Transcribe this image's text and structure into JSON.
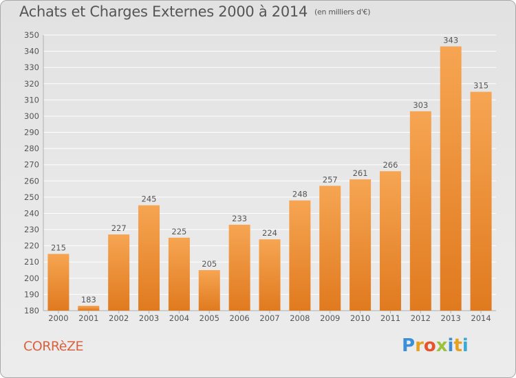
{
  "title": "Achats et Charges Externes 2000 à 2014",
  "subtitle": "(en milliers d'€)",
  "region": "CORRèZE",
  "brand": {
    "letters": [
      {
        "ch": "P",
        "color": "#3a8fd6"
      },
      {
        "ch": "r",
        "color": "#e6a21f"
      },
      {
        "ch": "o",
        "color": "#e5542b"
      },
      {
        "ch": "x",
        "color": "#9bc23c"
      },
      {
        "ch": "i",
        "color": "#3a8fd6"
      },
      {
        "ch": "t",
        "color": "#e6a21f"
      },
      {
        "ch": "i",
        "color": "#3aa9d6"
      }
    ]
  },
  "colors": {
    "bar_light": "#f6a552",
    "bar_dark": "#e07a1f",
    "grid": "#ffffff",
    "text": "#555555"
  },
  "chart_data": {
    "type": "bar",
    "categories": [
      "2000",
      "2001",
      "2002",
      "2003",
      "2004",
      "2005",
      "2006",
      "2007",
      "2008",
      "2009",
      "2010",
      "2011",
      "2012",
      "2013",
      "2014"
    ],
    "values": [
      215,
      183,
      227,
      245,
      225,
      205,
      233,
      224,
      248,
      257,
      261,
      266,
      303,
      343,
      315
    ],
    "ylim": [
      180,
      350
    ],
    "yticks": [
      180,
      190,
      200,
      210,
      220,
      230,
      240,
      250,
      260,
      270,
      280,
      290,
      300,
      310,
      320,
      330,
      340,
      350
    ],
    "grid": true
  }
}
